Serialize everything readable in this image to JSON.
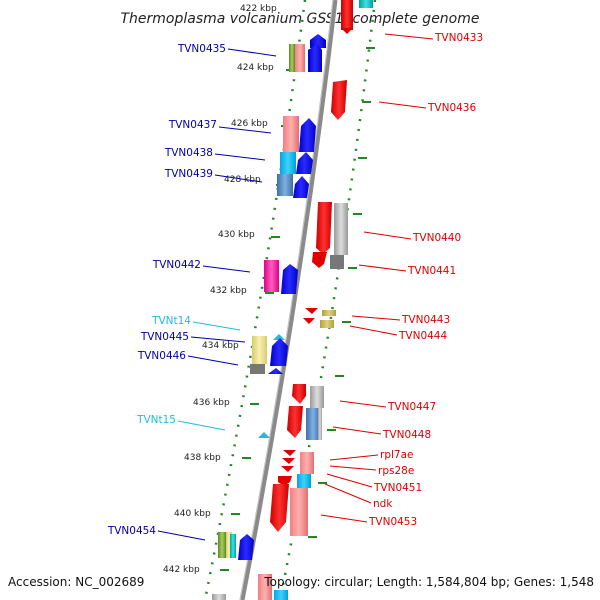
{
  "title": "Thermoplasma volcanium GSS1, complete genome",
  "footer": {
    "accession": "Accession: NC_002689",
    "summary": "Topology: circular; Length: 1,584,804 bp; Genes: 1,548"
  },
  "colors": {
    "forward_label": "#0000aa",
    "reverse_label": "#dd0000",
    "rna_label": "#22bbdd",
    "backbone": "#888888",
    "dots": "#228822"
  },
  "kbp_labels": [
    {
      "text": "422 kbp"
    },
    {
      "text": "424 kbp"
    },
    {
      "text": "426 kbp"
    },
    {
      "text": "428 kbp"
    },
    {
      "text": "430 kbp"
    },
    {
      "text": "432 kbp"
    },
    {
      "text": "434 kbp"
    },
    {
      "text": "436 kbp"
    },
    {
      "text": "438 kbp"
    },
    {
      "text": "440 kbp"
    },
    {
      "text": "442 kbp"
    }
  ],
  "genes_left": [
    {
      "text": "TVN0435",
      "kind": "forward"
    },
    {
      "text": "TVN0437",
      "kind": "forward"
    },
    {
      "text": "TVN0438",
      "kind": "forward"
    },
    {
      "text": "TVN0439",
      "kind": "forward"
    },
    {
      "text": "TVN0442",
      "kind": "forward"
    },
    {
      "text": "TVNt14",
      "kind": "rna"
    },
    {
      "text": "TVN0445",
      "kind": "forward"
    },
    {
      "text": "TVN0446",
      "kind": "forward"
    },
    {
      "text": "TVNt15",
      "kind": "rna"
    },
    {
      "text": "TVN0454",
      "kind": "forward"
    }
  ],
  "genes_right": [
    {
      "text": "TVN0433"
    },
    {
      "text": "TVN0436"
    },
    {
      "text": "TVN0440"
    },
    {
      "text": "TVN0441"
    },
    {
      "text": "TVN0443"
    },
    {
      "text": "TVN0444"
    },
    {
      "text": "TVN0447"
    },
    {
      "text": "TVN0448"
    },
    {
      "text": "rpl7ae"
    },
    {
      "text": "rps28e"
    },
    {
      "text": "TVN0451"
    },
    {
      "text": "ndk"
    },
    {
      "text": "TVN0453"
    }
  ]
}
